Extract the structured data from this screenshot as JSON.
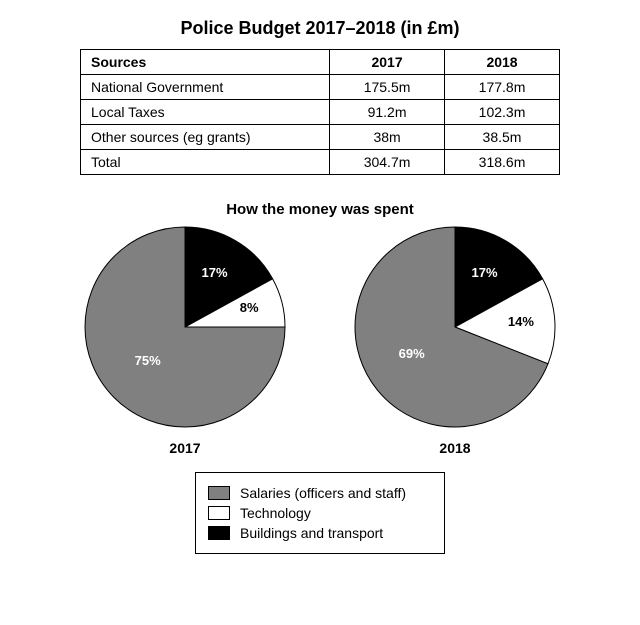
{
  "title": "Police Budget 2017–2018 (in £m)",
  "table": {
    "columns": [
      "Sources",
      "2017",
      "2018"
    ],
    "rows": [
      [
        "National Government",
        "175.5m",
        "177.8m"
      ],
      [
        "Local Taxes",
        "91.2m",
        "102.3m"
      ],
      [
        "Other sources (eg grants)",
        "38m",
        "38.5m"
      ],
      [
        "Total",
        "304.7m",
        "318.6m"
      ]
    ]
  },
  "subtitle": "How the money was spent",
  "colors": {
    "salaries": "#808080",
    "technology": "#ffffff",
    "buildings": "#000000",
    "stroke": "#000000",
    "label_dark": "#000000",
    "label_light": "#ffffff"
  },
  "pie_radius": 100,
  "pies": [
    {
      "year": "2017",
      "slices": [
        {
          "key": "buildings",
          "pct": 17,
          "label": "17%",
          "label_color": "light",
          "label_r": 0.62
        },
        {
          "key": "technology",
          "pct": 8,
          "label": "8%",
          "label_color": "dark",
          "label_r": 0.72
        },
        {
          "key": "salaries",
          "pct": 75,
          "label": "75%",
          "label_color": "light",
          "label_r": 0.5
        }
      ]
    },
    {
      "year": "2018",
      "slices": [
        {
          "key": "buildings",
          "pct": 17,
          "label": "17%",
          "label_color": "light",
          "label_r": 0.62
        },
        {
          "key": "technology",
          "pct": 14,
          "label": "14%",
          "label_color": "dark",
          "label_r": 0.68
        },
        {
          "key": "salaries",
          "pct": 69,
          "label": "69%",
          "label_color": "light",
          "label_r": 0.5
        }
      ]
    }
  ],
  "legend": [
    {
      "key": "salaries",
      "label": "Salaries (officers and staff)"
    },
    {
      "key": "technology",
      "label": "Technology"
    },
    {
      "key": "buildings",
      "label": "Buildings and transport"
    }
  ]
}
